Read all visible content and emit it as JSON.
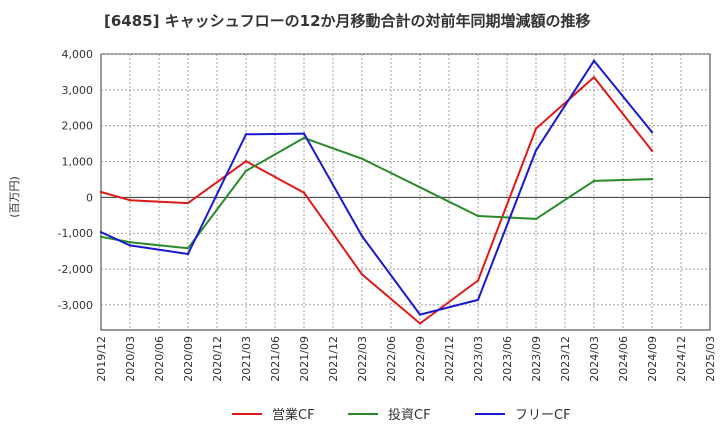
{
  "chart_data": {
    "type": "line",
    "title": "[6485]  キャッシュフローの12か月移動合計の対前年同期増減額の推移",
    "ylabel": "(百万円)",
    "xlabel": "",
    "ylim": [
      -3700,
      4000
    ],
    "yticks": [
      4000,
      3000,
      2000,
      1000,
      0,
      -1000,
      -2000,
      -3000
    ],
    "ytick_labels": [
      "4,000",
      "3,000",
      "2,000",
      "1,000",
      "0",
      "-1,000",
      "-2,000",
      "-3,000"
    ],
    "categories": [
      "2019/12",
      "2020/03",
      "2020/06",
      "2020/09",
      "2020/12",
      "2021/03",
      "2021/06",
      "2021/09",
      "2021/12",
      "2022/03",
      "2022/06",
      "2022/09",
      "2022/12",
      "2023/03",
      "2023/06",
      "2023/09",
      "2023/12",
      "2024/03",
      "2024/06",
      "2024/09",
      "2024/12",
      "2025/03"
    ],
    "grid": true,
    "legend_position": "bottom",
    "series": [
      {
        "name": "営業CF",
        "color": "#dd1a1a",
        "values": [
          150,
          -80,
          null,
          -160,
          null,
          1010,
          null,
          130,
          null,
          -2150,
          null,
          -3520,
          null,
          -2320,
          null,
          1920,
          null,
          3350,
          null,
          1300,
          null,
          null
        ]
      },
      {
        "name": "投資CF",
        "color": "#2a8a2a",
        "values": [
          -1100,
          -1250,
          null,
          -1420,
          null,
          740,
          null,
          1660,
          null,
          1080,
          null,
          280,
          null,
          -520,
          null,
          -600,
          null,
          460,
          null,
          510,
          null,
          null
        ]
      },
      {
        "name": "フリーCF",
        "color": "#1a1acc",
        "values": [
          -970,
          -1340,
          null,
          -1580,
          null,
          1760,
          null,
          1780,
          null,
          -1080,
          null,
          -3270,
          null,
          -2860,
          null,
          1310,
          null,
          3810,
          null,
          1820,
          null,
          null
        ]
      }
    ]
  }
}
